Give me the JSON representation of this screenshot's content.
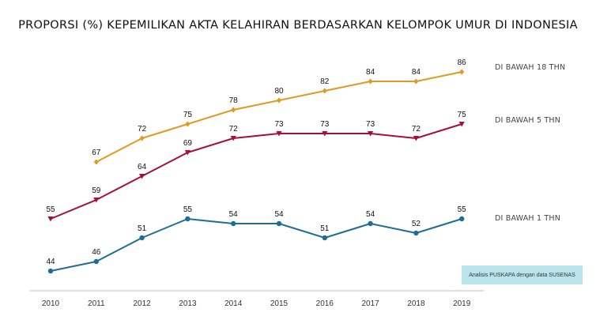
{
  "title": "PROPORSI (%) KEPEMILIKAN AKTA KELAHIRAN BERDASARKAN KELOMPOK UMUR DI INDONESIA",
  "source_note": "Analisis PUSKAPA dengan  data SUSENAS",
  "colors": {
    "under18": "#e09a22",
    "under5": "#a3103c",
    "under1": "#1f6d96",
    "source_bg": "#b9e4ea"
  },
  "chart_data": {
    "type": "line",
    "title": "PROPORSI (%) KEPEMILIKAN AKTA KELAHIRAN BERDASARKAN KELOMPOK UMUR DI INDONESIA",
    "categories": [
      "2010",
      "2011",
      "2012",
      "2013",
      "2014",
      "2015",
      "2016",
      "2017",
      "2018",
      "2019"
    ],
    "xlabel": "",
    "ylabel": "",
    "grid": false,
    "series": [
      {
        "name": "DI BAWAH 18 THN",
        "key": "under18",
        "marker": "diamond",
        "values": [
          null,
          67,
          72,
          75,
          78,
          80,
          82,
          84,
          84,
          86
        ]
      },
      {
        "name": "DI BAWAH 5 THN",
        "key": "under5",
        "marker": "triangle-down",
        "values": [
          55,
          59,
          64,
          69,
          72,
          73,
          73,
          73,
          72,
          75
        ]
      },
      {
        "name": "DI BAWAH 1 THN",
        "key": "under1",
        "marker": "circle",
        "values": [
          44,
          46,
          51,
          55,
          54,
          54,
          51,
          54,
          52,
          55
        ]
      }
    ]
  }
}
